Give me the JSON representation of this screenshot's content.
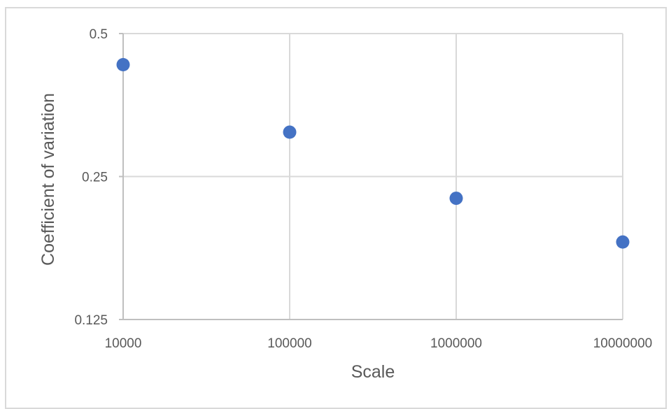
{
  "chart_data": {
    "type": "scatter",
    "title": "",
    "xlabel": "Scale",
    "ylabel": "Coefficient of variation",
    "x_scale": "log10",
    "y_scale": "log2",
    "xlim": [
      10000,
      10000000
    ],
    "ylim": [
      0.125,
      0.5
    ],
    "x_ticks": [
      10000,
      100000,
      1000000,
      10000000
    ],
    "x_tick_labels": [
      "10000",
      "100000",
      "1000000",
      "10000000"
    ],
    "y_ticks": [
      0.125,
      0.25,
      0.5
    ],
    "y_tick_labels": [
      "0.125",
      "0.25",
      "0.5"
    ],
    "grid": true,
    "legend": "none",
    "series": [
      {
        "color": "#4472c4",
        "points": [
          {
            "x": 10000,
            "y": 0.43
          },
          {
            "x": 100000,
            "y": 0.31
          },
          {
            "x": 1000000,
            "y": 0.225
          },
          {
            "x": 10000000,
            "y": 0.182
          }
        ]
      }
    ]
  }
}
